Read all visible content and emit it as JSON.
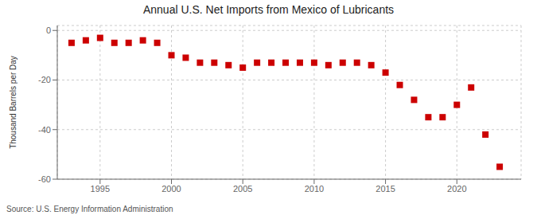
{
  "chart_data": {
    "type": "scatter",
    "title": "Annual U.S. Net Imports from Mexico of Lubricants",
    "ylabel": "Thousand Barrels per Day",
    "source": "Source: U.S. Energy Information Administration",
    "x": [
      1993,
      1994,
      1995,
      1996,
      1997,
      1998,
      1999,
      2000,
      2001,
      2002,
      2003,
      2004,
      2005,
      2006,
      2007,
      2008,
      2009,
      2010,
      2011,
      2012,
      2013,
      2014,
      2015,
      2016,
      2017,
      2018,
      2019,
      2020,
      2021,
      2022,
      2023
    ],
    "values": [
      -5,
      -4,
      -3,
      -5,
      -5,
      -4,
      -5,
      -10,
      -11,
      -13,
      -13,
      -14,
      -15,
      -13,
      -13,
      -13,
      -13,
      -13,
      -14,
      -13,
      -13,
      -14,
      -17,
      -22,
      -28,
      -35,
      -35,
      -30,
      -23,
      -42,
      -55
    ],
    "color": "#cc0000",
    "marker": "square",
    "xlim": [
      1992,
      2024.5
    ],
    "xticks": [
      1995,
      2000,
      2005,
      2010,
      2015,
      2020
    ],
    "ylim": [
      -60,
      2
    ],
    "yticks": [
      0,
      -20,
      -40,
      -60
    ],
    "grid": true
  }
}
